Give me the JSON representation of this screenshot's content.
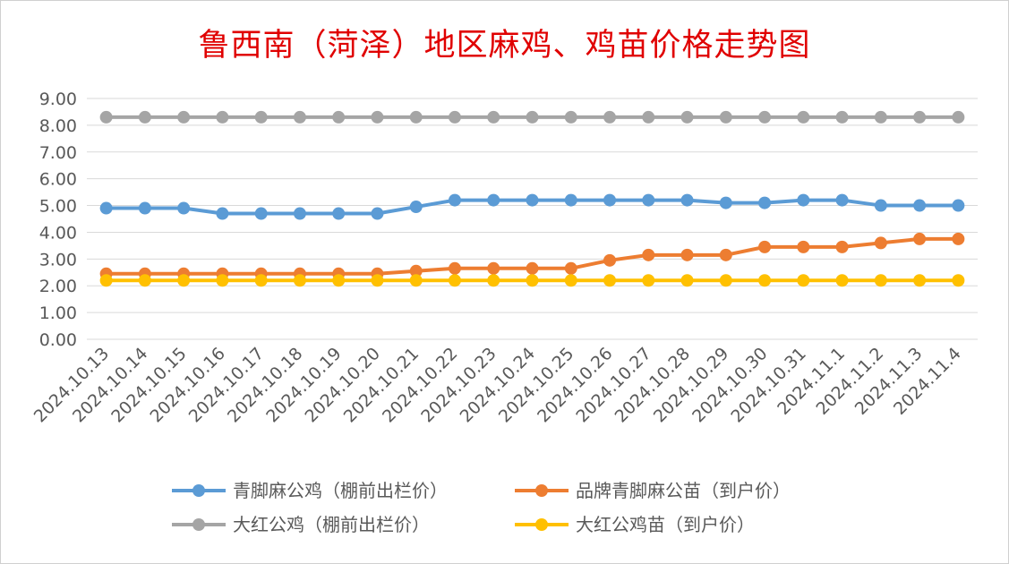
{
  "chart_data": {
    "type": "line",
    "title": "鲁西南（菏泽）地区麻鸡、鸡苗价格走势图",
    "xlabel": "",
    "ylabel": "",
    "ylim": [
      0,
      9
    ],
    "y_ticks": [
      "0.00",
      "1.00",
      "2.00",
      "3.00",
      "4.00",
      "5.00",
      "6.00",
      "7.00",
      "8.00",
      "9.00"
    ],
    "grid": "horizontal",
    "legend_position": "bottom",
    "categories": [
      "2024.10.13",
      "2024.10.14",
      "2024.10.15",
      "2024.10.16",
      "2024.10.17",
      "2024.10.18",
      "2024.10.19",
      "2024.10.20",
      "2024.10.21",
      "2024.10.22",
      "2024.10.23",
      "2024.10.24",
      "2024.10.25",
      "2024.10.26",
      "2024.10.27",
      "2024.10.28",
      "2024.10.29",
      "2024.10.30",
      "2024.10.31",
      "2024.11.1",
      "2024.11.2",
      "2024.11.3",
      "2024.11.4"
    ],
    "series": [
      {
        "name": "青脚麻公鸡（棚前出栏价）",
        "color": "#5b9bd5",
        "values": [
          4.9,
          4.9,
          4.9,
          4.7,
          4.7,
          4.7,
          4.7,
          4.7,
          4.95,
          5.2,
          5.2,
          5.2,
          5.2,
          5.2,
          5.2,
          5.2,
          5.1,
          5.1,
          5.2,
          5.2,
          5.0,
          5.0,
          5.0
        ]
      },
      {
        "name": "品牌青脚麻公苗（到户价）",
        "color": "#ed7d31",
        "values": [
          2.45,
          2.45,
          2.45,
          2.45,
          2.45,
          2.45,
          2.45,
          2.45,
          2.55,
          2.65,
          2.65,
          2.65,
          2.65,
          2.95,
          3.15,
          3.15,
          3.15,
          3.45,
          3.45,
          3.45,
          3.6,
          3.75,
          3.75
        ]
      },
      {
        "name": "大红公鸡（棚前出栏价）",
        "color": "#a5a5a5",
        "values": [
          8.3,
          8.3,
          8.3,
          8.3,
          8.3,
          8.3,
          8.3,
          8.3,
          8.3,
          8.3,
          8.3,
          8.3,
          8.3,
          8.3,
          8.3,
          8.3,
          8.3,
          8.3,
          8.3,
          8.3,
          8.3,
          8.3,
          8.3
        ]
      },
      {
        "name": "大红公鸡苗（到户价）",
        "color": "#ffc000",
        "values": [
          2.2,
          2.2,
          2.2,
          2.2,
          2.2,
          2.2,
          2.2,
          2.2,
          2.2,
          2.2,
          2.2,
          2.2,
          2.2,
          2.2,
          2.2,
          2.2,
          2.2,
          2.2,
          2.2,
          2.2,
          2.2,
          2.2,
          2.2
        ]
      }
    ]
  }
}
